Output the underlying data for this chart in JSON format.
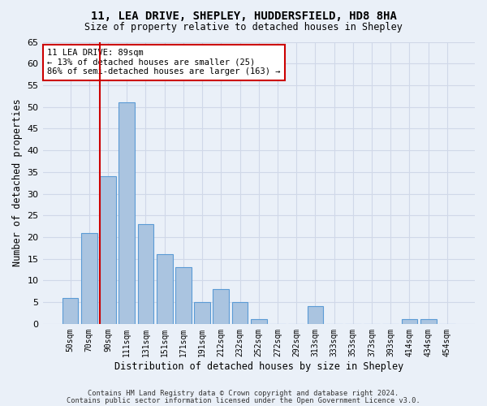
{
  "title1": "11, LEA DRIVE, SHEPLEY, HUDDERSFIELD, HD8 8HA",
  "title2": "Size of property relative to detached houses in Shepley",
  "xlabel": "Distribution of detached houses by size in Shepley",
  "ylabel": "Number of detached properties",
  "categories": [
    "50sqm",
    "70sqm",
    "90sqm",
    "111sqm",
    "131sqm",
    "151sqm",
    "171sqm",
    "191sqm",
    "212sqm",
    "232sqm",
    "252sqm",
    "272sqm",
    "292sqm",
    "313sqm",
    "333sqm",
    "353sqm",
    "373sqm",
    "393sqm",
    "414sqm",
    "434sqm",
    "454sqm"
  ],
  "values": [
    6,
    21,
    34,
    51,
    23,
    16,
    13,
    5,
    8,
    5,
    1,
    0,
    0,
    4,
    0,
    0,
    0,
    0,
    1,
    1,
    0
  ],
  "bar_color": "#aac4e0",
  "bar_edge_color": "#5b9bd5",
  "grid_color": "#d0d8e8",
  "background_color": "#eaf0f8",
  "vline_color": "#cc0000",
  "vline_pos": 1.575,
  "annotation_text": "11 LEA DRIVE: 89sqm\n← 13% of detached houses are smaller (25)\n86% of semi-detached houses are larger (163) →",
  "annotation_box_color": "#ffffff",
  "annotation_box_edge": "#cc0000",
  "ylim": [
    0,
    65
  ],
  "yticks": [
    0,
    5,
    10,
    15,
    20,
    25,
    30,
    35,
    40,
    45,
    50,
    55,
    60,
    65
  ],
  "footer1": "Contains HM Land Registry data © Crown copyright and database right 2024.",
  "footer2": "Contains public sector information licensed under the Open Government Licence v3.0."
}
